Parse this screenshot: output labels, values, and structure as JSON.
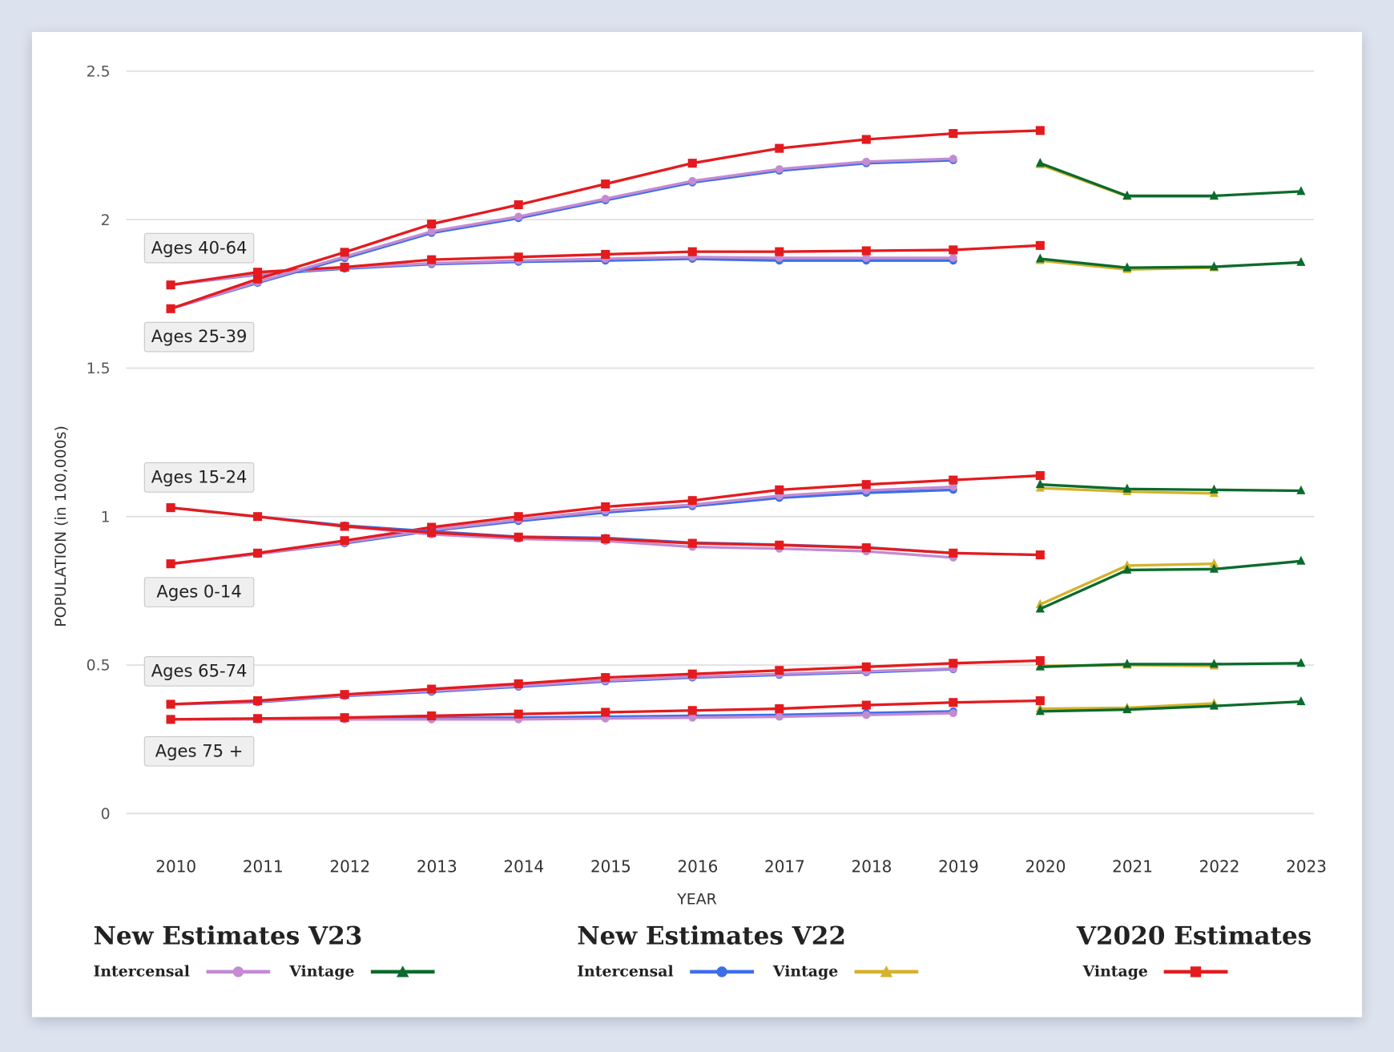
{
  "chart_data": {
    "type": "line",
    "xlabel": "YEAR",
    "ylabel": "POPULATION (in 100,000s)",
    "ylim": [
      0,
      2.5
    ],
    "yticks": [
      "0",
      "0.5",
      "1",
      "1.5",
      "2",
      "2.5"
    ],
    "x": [
      2010,
      2011,
      2012,
      2013,
      2014,
      2015,
      2016,
      2017,
      2018,
      2019,
      2020,
      2021,
      2022,
      2023
    ],
    "x_labels": [
      "2010",
      "2011",
      "2012",
      "2013",
      "2014",
      "2015",
      "2016",
      "2017",
      "2018",
      "2019",
      "2020",
      "2021",
      "2022",
      "2023"
    ],
    "grid": true,
    "series_styles": {
      "v23_intercensal": {
        "color": "#c48ad2",
        "marker": "circle"
      },
      "v23_vintage": {
        "color": "#0b6b2c",
        "marker": "triangle"
      },
      "v22_intercensal": {
        "color": "#3c6ee8",
        "marker": "circle"
      },
      "v22_vintage": {
        "color": "#d4b32c",
        "marker": "triangle"
      },
      "v2020_vintage": {
        "color": "#e31b1f",
        "marker": "square"
      }
    },
    "age_groups": [
      {
        "label": "Ages 40-64",
        "v2020_vintage": {
          "start": 2010,
          "values": [
            1.78,
            1.823,
            1.84,
            1.865,
            1.874,
            1.883,
            1.892,
            1.892,
            1.895,
            1.898,
            1.913
          ]
        },
        "v22_intercensal": {
          "start": 2010,
          "values": [
            1.78,
            1.815,
            1.835,
            1.85,
            1.858,
            1.862,
            1.868,
            1.862,
            1.862,
            1.862
          ]
        },
        "v23_intercensal": {
          "start": 2010,
          "values": [
            1.78,
            1.817,
            1.838,
            1.853,
            1.862,
            1.868,
            1.874,
            1.871,
            1.871,
            1.871
          ]
        },
        "v22_vintage": {
          "start": 2020,
          "values": [
            1.862,
            1.832,
            1.838
          ]
        },
        "v23_vintage": {
          "start": 2020,
          "values": [
            1.868,
            1.838,
            1.841,
            1.856
          ]
        }
      },
      {
        "label": "Ages 25-39",
        "v2020_vintage": {
          "start": 2010,
          "values": [
            1.7,
            1.8,
            1.89,
            1.985,
            2.05,
            2.12,
            2.19,
            2.24,
            2.27,
            2.29,
            2.3
          ]
        },
        "v22_intercensal": {
          "start": 2010,
          "values": [
            1.7,
            1.787,
            1.87,
            1.955,
            2.005,
            2.065,
            2.125,
            2.165,
            2.19,
            2.2
          ]
        },
        "v23_intercensal": {
          "start": 2010,
          "values": [
            1.7,
            1.79,
            1.875,
            1.96,
            2.01,
            2.07,
            2.13,
            2.17,
            2.195,
            2.205
          ]
        },
        "v22_vintage": {
          "start": 2020,
          "values": [
            2.185,
            2.078,
            2.078
          ]
        },
        "v23_vintage": {
          "start": 2020,
          "values": [
            2.19,
            2.08,
            2.08,
            2.095
          ]
        }
      },
      {
        "label": "Ages 15-24",
        "v2020_vintage": {
          "start": 2010,
          "values": [
            0.841,
            0.877,
            0.919,
            0.964,
            1.0,
            1.033,
            1.054,
            1.09,
            1.108,
            1.123,
            1.138
          ]
        },
        "v22_intercensal": {
          "start": 2010,
          "values": [
            0.841,
            0.874,
            0.91,
            0.952,
            0.985,
            1.014,
            1.035,
            1.063,
            1.08,
            1.09
          ]
        },
        "v23_intercensal": {
          "start": 2010,
          "values": [
            0.841,
            0.874,
            0.913,
            0.955,
            0.99,
            1.02,
            1.04,
            1.07,
            1.088,
            1.1
          ]
        },
        "v22_vintage": {
          "start": 2020,
          "values": [
            1.096,
            1.084,
            1.078
          ]
        },
        "v23_vintage": {
          "start": 2020,
          "values": [
            1.108,
            1.093,
            1.09,
            1.087
          ]
        }
      },
      {
        "label": "Ages 0-14",
        "v2020_vintage": {
          "start": 2010,
          "values": [
            1.03,
            1.0,
            0.967,
            0.946,
            0.931,
            0.925,
            0.91,
            0.904,
            0.895,
            0.877,
            0.871
          ]
        },
        "v22_intercensal": {
          "start": 2010,
          "values": [
            1.03,
            1.0,
            0.97,
            0.95,
            0.932,
            0.928,
            0.912,
            0.905,
            0.896,
            0.877
          ]
        },
        "v23_intercensal": {
          "start": 2010,
          "values": [
            1.03,
            1.0,
            0.967,
            0.94,
            0.925,
            0.918,
            0.898,
            0.892,
            0.883,
            0.862
          ]
        },
        "v22_vintage": {
          "start": 2020,
          "values": [
            0.704,
            0.835,
            0.841
          ]
        },
        "v23_vintage": {
          "start": 2020,
          "values": [
            0.689,
            0.82,
            0.823,
            0.85
          ]
        }
      },
      {
        "label": "Ages 65-74",
        "v2020_vintage": {
          "start": 2010,
          "values": [
            0.368,
            0.38,
            0.401,
            0.419,
            0.437,
            0.458,
            0.47,
            0.482,
            0.494,
            0.506,
            0.515
          ]
        },
        "v22_intercensal": {
          "start": 2010,
          "values": [
            0.368,
            0.375,
            0.396,
            0.41,
            0.427,
            0.445,
            0.458,
            0.467,
            0.476,
            0.486
          ]
        },
        "v23_intercensal": {
          "start": 2010,
          "values": [
            0.368,
            0.377,
            0.398,
            0.413,
            0.43,
            0.448,
            0.461,
            0.47,
            0.479,
            0.488
          ]
        },
        "v22_vintage": {
          "start": 2020,
          "values": [
            0.497,
            0.5,
            0.497
          ]
        },
        "v23_vintage": {
          "start": 2020,
          "values": [
            0.494,
            0.503,
            0.503,
            0.506
          ]
        }
      },
      {
        "label": "Ages 75 +",
        "v2020_vintage": {
          "start": 2010,
          "values": [
            0.317,
            0.32,
            0.323,
            0.329,
            0.335,
            0.341,
            0.347,
            0.353,
            0.365,
            0.374,
            0.38
          ]
        },
        "v22_intercensal": {
          "start": 2010,
          "values": [
            0.317,
            0.318,
            0.319,
            0.321,
            0.323,
            0.326,
            0.329,
            0.332,
            0.338,
            0.344
          ]
        },
        "v23_intercensal": {
          "start": 2010,
          "values": [
            0.317,
            0.317,
            0.317,
            0.317,
            0.317,
            0.32,
            0.323,
            0.326,
            0.332,
            0.338
          ]
        },
        "v22_vintage": {
          "start": 2020,
          "values": [
            0.353,
            0.356,
            0.371
          ]
        },
        "v23_vintage": {
          "start": 2020,
          "values": [
            0.344,
            0.35,
            0.362,
            0.377
          ]
        }
      }
    ]
  },
  "legend": {
    "v23": {
      "title": "New Estimates V23",
      "intercensal": "Intercensal",
      "vintage": "Vintage"
    },
    "v22": {
      "title": "New Estimates V22",
      "intercensal": "Intercensal",
      "vintage": "Vintage"
    },
    "v2020": {
      "title": "V2020 Estimates",
      "vintage": "Vintage"
    }
  }
}
